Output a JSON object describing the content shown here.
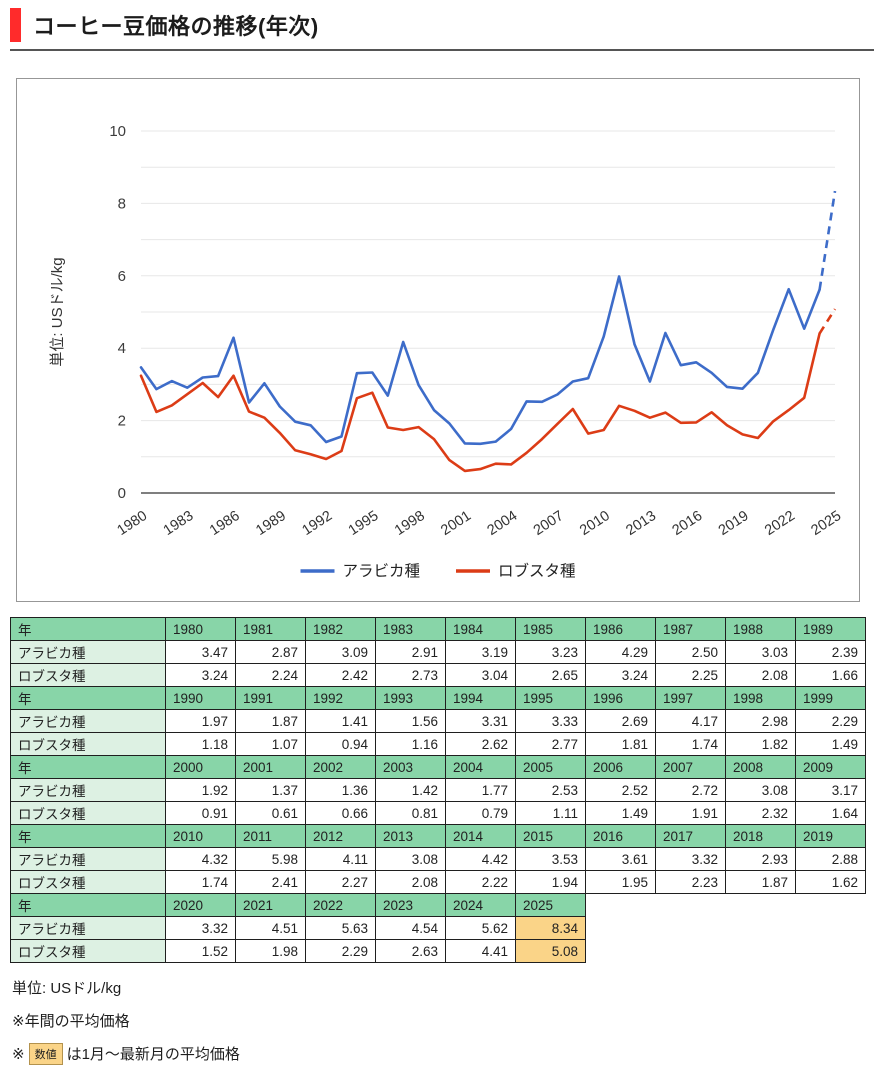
{
  "page": {
    "title": "コーヒー豆価格の推移(年次)"
  },
  "colors": {
    "accent_red": "#ff2b2b",
    "arabica_blue": "#3d6cc9",
    "robusta_red": "#dc3c16",
    "table_header_green": "#88d5a8",
    "table_label_green": "#ddf1e3",
    "highlight_orange": "#fad488"
  },
  "chart_data": {
    "type": "line",
    "title": "コーヒー豆価格の推移(年次)",
    "ylabel": "単位: USドル/kg",
    "xlabel": "",
    "ylim": [
      0,
      10
    ],
    "yticks": [
      0,
      2,
      4,
      6,
      8,
      10
    ],
    "grid": "horizontal gridlines every 1 unit",
    "legend_position": "bottom",
    "last_segment_dashed": true,
    "xticks": [
      1980,
      1983,
      1986,
      1989,
      1992,
      1995,
      1998,
      2001,
      2004,
      2007,
      2010,
      2013,
      2016,
      2019,
      2022,
      2025
    ],
    "x": [
      1980,
      1981,
      1982,
      1983,
      1984,
      1985,
      1986,
      1987,
      1988,
      1989,
      1990,
      1991,
      1992,
      1993,
      1994,
      1995,
      1996,
      1997,
      1998,
      1999,
      2000,
      2001,
      2002,
      2003,
      2004,
      2005,
      2006,
      2007,
      2008,
      2009,
      2010,
      2011,
      2012,
      2013,
      2014,
      2015,
      2016,
      2017,
      2018,
      2019,
      2020,
      2021,
      2022,
      2023,
      2024,
      2025
    ],
    "series": [
      {
        "name": "アラビカ種",
        "color": "#3d6cc9",
        "values": [
          3.47,
          2.87,
          3.09,
          2.91,
          3.19,
          3.23,
          4.29,
          2.5,
          3.03,
          2.39,
          1.97,
          1.87,
          1.41,
          1.56,
          3.31,
          3.33,
          2.69,
          4.17,
          2.98,
          2.29,
          1.92,
          1.37,
          1.36,
          1.42,
          1.77,
          2.53,
          2.52,
          2.72,
          3.08,
          3.17,
          4.32,
          5.98,
          4.11,
          3.08,
          4.42,
          3.53,
          3.61,
          3.32,
          2.93,
          2.88,
          3.32,
          4.51,
          5.63,
          4.54,
          5.62,
          8.34
        ]
      },
      {
        "name": "ロブスタ種",
        "color": "#dc3c16",
        "values": [
          3.24,
          2.24,
          2.42,
          2.73,
          3.04,
          2.65,
          3.24,
          2.25,
          2.08,
          1.66,
          1.18,
          1.07,
          0.94,
          1.16,
          2.62,
          2.77,
          1.81,
          1.74,
          1.82,
          1.49,
          0.91,
          0.61,
          0.66,
          0.81,
          0.79,
          1.11,
          1.49,
          1.91,
          2.32,
          1.64,
          1.74,
          2.41,
          2.27,
          2.08,
          2.22,
          1.94,
          1.95,
          2.23,
          1.87,
          1.62,
          1.52,
          1.98,
          2.29,
          2.63,
          4.41,
          5.08
        ]
      }
    ]
  },
  "table": {
    "year_label": "年",
    "series_labels": [
      "アラビカ種",
      "ロブスタ種"
    ],
    "highlight_years": [
      2025
    ],
    "blocks": [
      {
        "years": [
          1980,
          1981,
          1982,
          1983,
          1984,
          1985,
          1986,
          1987,
          1988,
          1989
        ],
        "arabica": [
          3.47,
          2.87,
          3.09,
          2.91,
          3.19,
          3.23,
          4.29,
          2.5,
          3.03,
          2.39
        ],
        "robusta": [
          3.24,
          2.24,
          2.42,
          2.73,
          3.04,
          2.65,
          3.24,
          2.25,
          2.08,
          1.66
        ]
      },
      {
        "years": [
          1990,
          1991,
          1992,
          1993,
          1994,
          1995,
          1996,
          1997,
          1998,
          1999
        ],
        "arabica": [
          1.97,
          1.87,
          1.41,
          1.56,
          3.31,
          3.33,
          2.69,
          4.17,
          2.98,
          2.29
        ],
        "robusta": [
          1.18,
          1.07,
          0.94,
          1.16,
          2.62,
          2.77,
          1.81,
          1.74,
          1.82,
          1.49
        ]
      },
      {
        "years": [
          2000,
          2001,
          2002,
          2003,
          2004,
          2005,
          2006,
          2007,
          2008,
          2009
        ],
        "arabica": [
          1.92,
          1.37,
          1.36,
          1.42,
          1.77,
          2.53,
          2.52,
          2.72,
          3.08,
          3.17
        ],
        "robusta": [
          0.91,
          0.61,
          0.66,
          0.81,
          0.79,
          1.11,
          1.49,
          1.91,
          2.32,
          1.64
        ]
      },
      {
        "years": [
          2010,
          2011,
          2012,
          2013,
          2014,
          2015,
          2016,
          2017,
          2018,
          2019
        ],
        "arabica": [
          4.32,
          5.98,
          4.11,
          3.08,
          4.42,
          3.53,
          3.61,
          3.32,
          2.93,
          2.88
        ],
        "robusta": [
          1.74,
          2.41,
          2.27,
          2.08,
          2.22,
          1.94,
          1.95,
          2.23,
          1.87,
          1.62
        ]
      },
      {
        "years": [
          2020,
          2021,
          2022,
          2023,
          2024,
          2025
        ],
        "arabica": [
          3.32,
          4.51,
          5.63,
          4.54,
          5.62,
          8.34
        ],
        "robusta": [
          1.52,
          1.98,
          2.29,
          2.63,
          4.41,
          5.08
        ]
      }
    ]
  },
  "footer": {
    "unit_note": "単位: USドル/kg",
    "note_annual": "※年間の平均価格",
    "note_partial_prefix": "※",
    "note_partial_badge": "数値",
    "note_partial_suffix": "は1月〜最新月の平均価格"
  }
}
